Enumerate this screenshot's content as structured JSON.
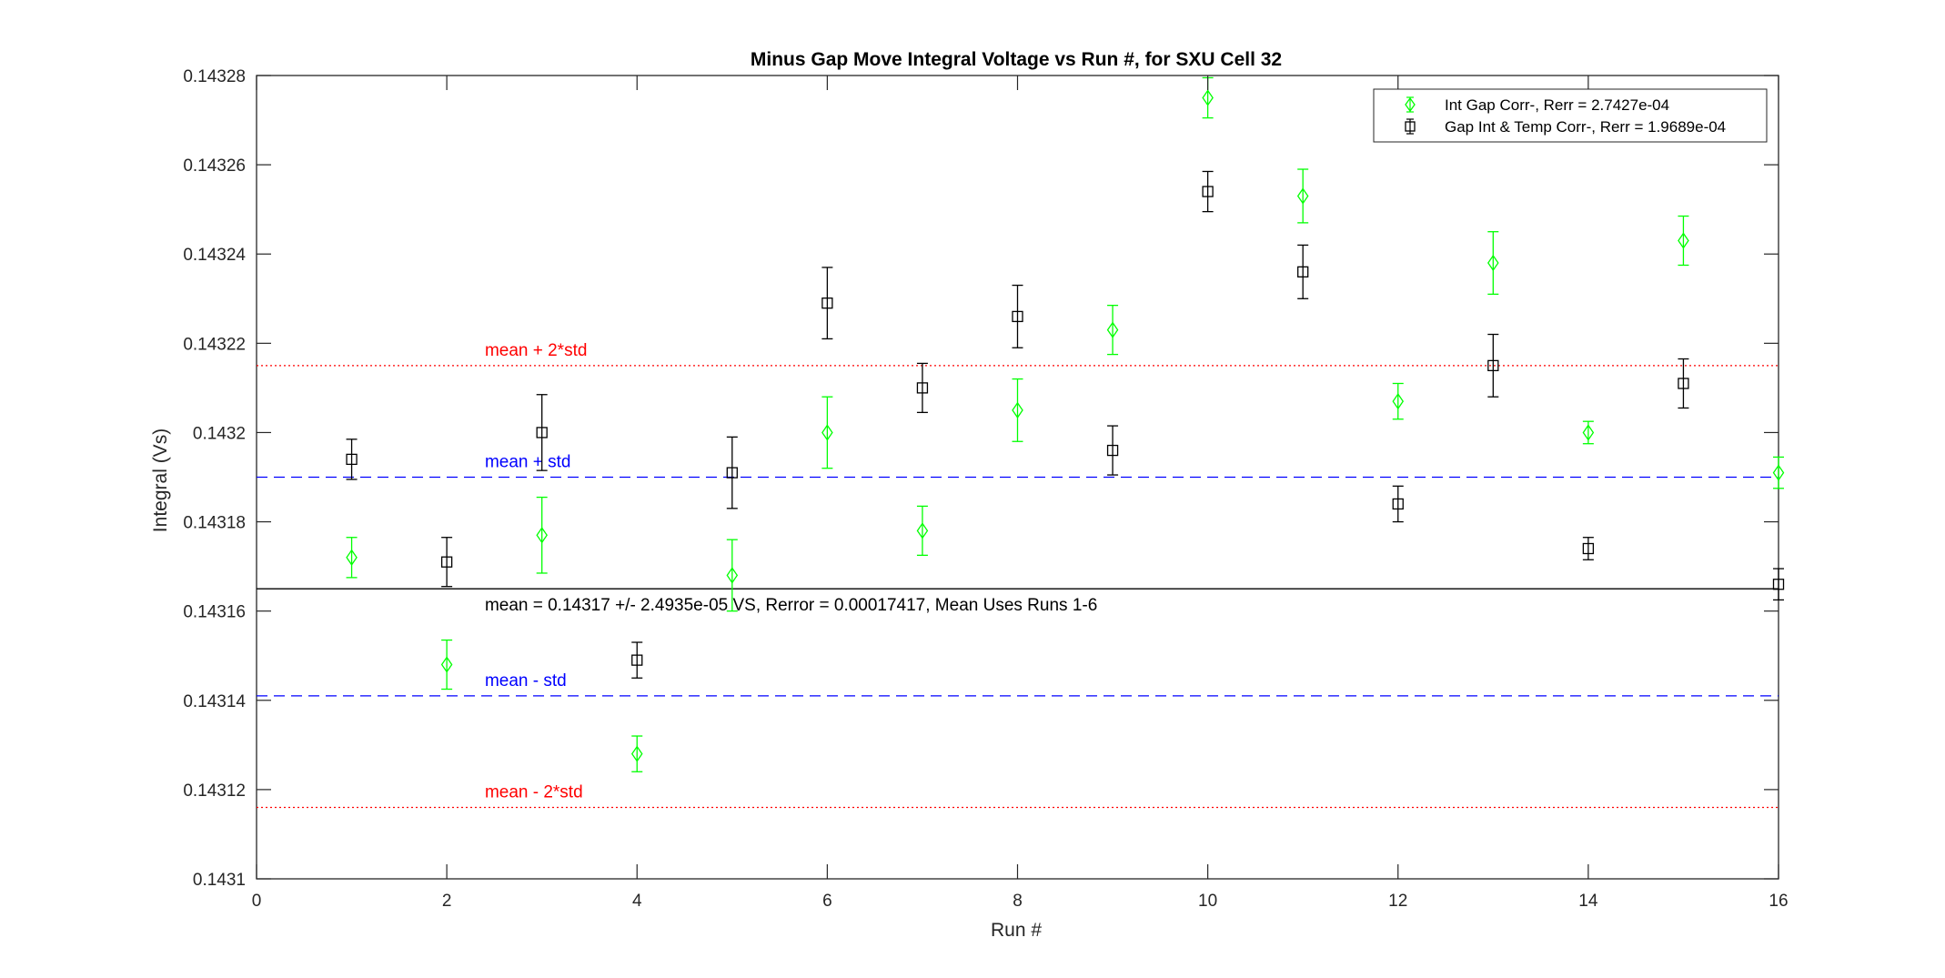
{
  "chart_data": {
    "type": "scatter",
    "title": "Minus Gap Move Integral Voltage vs Run #, for SXU Cell 32",
    "xlabel": "Run #",
    "ylabel": "Integral (Vs)",
    "xlim": [
      0,
      16
    ],
    "ylim": [
      0.1431,
      0.14328
    ],
    "xticks": [
      0,
      2,
      4,
      6,
      8,
      10,
      12,
      14,
      16
    ],
    "xtick_labels": [
      "0",
      "2",
      "4",
      "6",
      "8",
      "10",
      "12",
      "14",
      "16"
    ],
    "yticks": [
      0.1431,
      0.14312,
      0.14314,
      0.14316,
      0.14318,
      0.1432,
      0.14322,
      0.14324,
      0.14326,
      0.14328
    ],
    "ytick_labels": [
      "0.1431",
      "0.14312",
      "0.14314",
      "0.14316",
      "0.14318",
      "0.1432",
      "0.14322",
      "0.14324",
      "0.14326",
      "0.14328"
    ],
    "grid": false,
    "legend_position": "top-right",
    "series": [
      {
        "name": "Int Gap Corr-, Rerr = 2.7427e-04",
        "marker": "diamond",
        "color": "#00ff00",
        "x": [
          1,
          2,
          3,
          4,
          5,
          6,
          7,
          8,
          9,
          10,
          11,
          12,
          13,
          14,
          15,
          16
        ],
        "y": [
          0.143172,
          0.143148,
          0.143177,
          0.143128,
          0.143168,
          0.1432,
          0.143178,
          0.143205,
          0.143223,
          0.143275,
          0.143253,
          0.143207,
          0.143238,
          0.1432,
          0.143243,
          0.143191
        ],
        "err": [
          4.5e-06,
          5.5e-06,
          8.5e-06,
          4e-06,
          8e-06,
          8e-06,
          5.5e-06,
          7e-06,
          5.5e-06,
          4.5e-06,
          6e-06,
          4e-06,
          7e-06,
          2.5e-06,
          5.5e-06,
          3.5e-06
        ]
      },
      {
        "name": "Gap Int & Temp Corr-, Rerr = 1.9689e-04",
        "marker": "square",
        "color": "#000000",
        "x": [
          1,
          2,
          3,
          4,
          5,
          6,
          7,
          8,
          9,
          10,
          11,
          12,
          13,
          14,
          15,
          16
        ],
        "y": [
          0.143194,
          0.143171,
          0.1432,
          0.143149,
          0.143191,
          0.143229,
          0.14321,
          0.143226,
          0.143196,
          0.143254,
          0.143236,
          0.143184,
          0.143215,
          0.143174,
          0.143211,
          0.143166
        ],
        "err": [
          4.5e-06,
          5.5e-06,
          8.5e-06,
          4e-06,
          8e-06,
          8e-06,
          5.5e-06,
          7e-06,
          5.5e-06,
          4.5e-06,
          6e-06,
          4e-06,
          7e-06,
          2.5e-06,
          5.5e-06,
          3.5e-06
        ]
      }
    ],
    "reference_lines": [
      {
        "y": 0.143215,
        "color": "#ff0000",
        "style": "dotted",
        "label": "mean + 2*std"
      },
      {
        "y": 0.14319,
        "color": "#0000ff",
        "style": "dashed",
        "label": "mean + std"
      },
      {
        "y": 0.143165,
        "color": "#000000",
        "style": "solid",
        "label": "mean = 0.14317 +/- 2.4935e-05 VS, Rerror = 0.00017417, Mean Uses Runs 1-6"
      },
      {
        "y": 0.143141,
        "color": "#0000ff",
        "style": "dashed",
        "label": "mean - std"
      },
      {
        "y": 0.143116,
        "color": "#ff0000",
        "style": "dotted",
        "label": "mean - 2*std"
      }
    ]
  }
}
